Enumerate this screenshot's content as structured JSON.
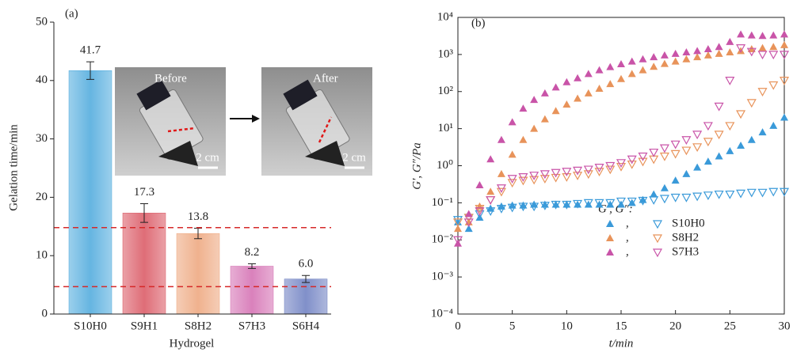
{
  "chart_data": [
    {
      "type": "bar",
      "panel": "(a)",
      "x_label": "Hydrogel",
      "y_label": "Gelation time/min",
      "categories": [
        "S10H0",
        "S9H1",
        "S8H2",
        "S7H3",
        "S6H4"
      ],
      "values": [
        41.7,
        17.3,
        13.8,
        8.2,
        6.0
      ],
      "value_labels": [
        "41.7",
        "17.3",
        "13.8",
        "8.2",
        "6.0"
      ],
      "errors": [
        1.5,
        1.6,
        0.9,
        0.4,
        0.6
      ],
      "colors": [
        "#4aa8dc",
        "#d9535f",
        "#eda47a",
        "#d36bb0",
        "#6a7cc0"
      ],
      "ref_lines": [
        14.8,
        4.7
      ],
      "ref_color": "#d62828",
      "ylim": [
        0,
        50
      ],
      "yticks": [
        0,
        10,
        20,
        30,
        40,
        50
      ],
      "insets": [
        {
          "label": "Before",
          "scale": "2 cm"
        },
        {
          "label": "After",
          "scale": "2 cm"
        }
      ]
    },
    {
      "type": "scatter",
      "panel": "(b)",
      "x_label": "t/min",
      "y_label": "G′, G″/Pa",
      "log_y": true,
      "legend_title": "G′, G″:",
      "legend_separator": ",",
      "x": [
        0,
        1,
        2,
        3,
        4,
        5,
        6,
        7,
        8,
        9,
        10,
        11,
        12,
        13,
        14,
        15,
        16,
        17,
        18,
        19,
        20,
        21,
        22,
        23,
        24,
        25,
        26,
        27,
        28,
        29,
        30
      ],
      "series": [
        {
          "name": "S10H0",
          "color": "#3a9ad9",
          "values": [
            0.03,
            0.02,
            0.04,
            0.07,
            0.08,
            0.085,
            0.085,
            0.09,
            0.09,
            0.09,
            0.09,
            0.09,
            0.09,
            0.09,
            0.09,
            0.09,
            0.1,
            0.12,
            0.17,
            0.25,
            0.4,
            0.6,
            0.9,
            1.3,
            1.8,
            2.5,
            3.5,
            5,
            8,
            12,
            20
          ],
          "loss_values": [
            0.035,
            0.04,
            0.05,
            0.06,
            0.07,
            0.075,
            0.08,
            0.08,
            0.085,
            0.09,
            0.09,
            0.095,
            0.1,
            0.1,
            0.1,
            0.11,
            0.11,
            0.115,
            0.12,
            0.13,
            0.14,
            0.14,
            0.15,
            0.16,
            0.17,
            0.17,
            0.18,
            0.19,
            0.19,
            0.2,
            0.2
          ]
        },
        {
          "name": "S8H2",
          "color": "#e8935a",
          "values": [
            0.02,
            0.03,
            0.08,
            0.2,
            0.6,
            2,
            5,
            10,
            18,
            30,
            45,
            65,
            90,
            120,
            160,
            220,
            300,
            380,
            470,
            560,
            650,
            750,
            850,
            950,
            1050,
            1150,
            1250,
            1400,
            1500,
            1600,
            1800
          ],
          "loss_values": [
            0.03,
            0.04,
            0.07,
            0.12,
            0.2,
            0.35,
            0.4,
            0.42,
            0.45,
            0.48,
            0.5,
            0.55,
            0.6,
            0.7,
            0.8,
            0.95,
            1.1,
            1.3,
            1.5,
            1.8,
            2.1,
            2.6,
            3.2,
            4.5,
            7,
            12,
            25,
            50,
            100,
            150,
            200
          ]
        },
        {
          "name": "S7H3",
          "color": "#c954a8",
          "values": [
            0.008,
            0.05,
            0.3,
            1.5,
            5,
            15,
            35,
            60,
            90,
            130,
            180,
            230,
            300,
            380,
            460,
            550,
            650,
            750,
            850,
            950,
            1050,
            1150,
            1250,
            1400,
            1600,
            2200,
            3500,
            3300,
            3200,
            3300,
            3500
          ],
          "loss_values": [
            0.01,
            0.03,
            0.06,
            0.12,
            0.25,
            0.45,
            0.5,
            0.55,
            0.6,
            0.65,
            0.7,
            0.75,
            0.8,
            0.9,
            1.0,
            1.2,
            1.5,
            1.8,
            2.3,
            3,
            3.8,
            5,
            7,
            12,
            40,
            200,
            1500,
            1200,
            1000,
            1000,
            1000
          ]
        }
      ],
      "xlim": [
        0,
        30
      ],
      "xticks": [
        0,
        5,
        10,
        15,
        20,
        25,
        30
      ],
      "ylim": [
        0.0001,
        10000
      ],
      "yticks": [
        {
          "value": 0.0001,
          "label": "10⁻⁴"
        },
        {
          "value": 0.001,
          "label": "10⁻³"
        },
        {
          "value": 0.01,
          "label": "10⁻²"
        },
        {
          "value": 0.1,
          "label": "10⁻¹"
        },
        {
          "value": 1,
          "label": "10⁰"
        },
        {
          "value": 10,
          "label": "10¹"
        },
        {
          "value": 100,
          "label": "10²"
        },
        {
          "value": 1000,
          "label": "10³"
        },
        {
          "value": 10000,
          "label": "10⁴"
        }
      ]
    }
  ]
}
